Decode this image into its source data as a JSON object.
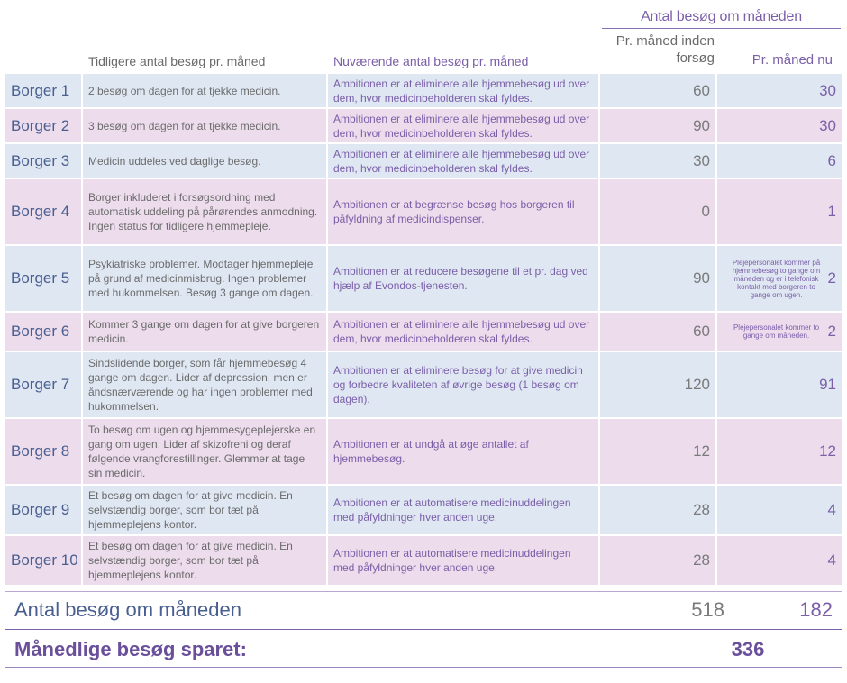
{
  "header": {
    "group_title": "Antal besøg om måneden",
    "col_previous": "Tidligere antal besøg pr. måned",
    "col_current": "Nuværende antal besøg pr. måned",
    "col_before": "Pr. måned inden forsøg",
    "col_now": "Pr. måned nu"
  },
  "rows": [
    {
      "name": "Borger 1",
      "previous": "2 besøg om dagen for at tjekke medicin.",
      "current": "Ambitionen er at eliminere alle hjemmebesøg ud over dem, hvor medicinbeholderen skal fyldes.",
      "before": "60",
      "now": "30",
      "note": ""
    },
    {
      "name": "Borger 2",
      "previous": "3 besøg om dagen for at tjekke medicin.",
      "current": "Ambitionen er at eliminere alle hjemmebesøg ud over dem, hvor medicinbeholderen skal fyldes.",
      "before": "90",
      "now": "30",
      "note": ""
    },
    {
      "name": "Borger 3",
      "previous": "Medicin uddeles ved daglige besøg.",
      "current": "Ambitionen er at eliminere alle hjemmebesøg ud over dem, hvor medicinbeholderen skal fyldes.",
      "before": "30",
      "now": "6",
      "note": ""
    },
    {
      "name": "Borger 4",
      "previous": "Borger inkluderet i forsøgsordning med automatisk uddeling på pårørendes anmodning. Ingen status for tidligere hjemmepleje.",
      "current": "Ambitionen er at begrænse besøg hos borgeren til påfyldning af medicindispenser.",
      "before": "0",
      "now": "1",
      "note": ""
    },
    {
      "name": "Borger 5",
      "previous": "Psykiatriske problemer. Modtager hjemmepleje på grund af medicinmisbrug. Ingen problemer med hukommelsen. Besøg 3 gange om dagen.",
      "current": "Ambitionen er at reducere besøgene til et pr. dag ved hjælp af Evondos-tjenesten.",
      "before": "90",
      "now": "2",
      "note": "Plejepersonalet kommer på hjemmebesøg to gange om måneden og er i telefonisk kontakt med borgeren to gange om ugen."
    },
    {
      "name": "Borger 6",
      "previous": "Kommer 3 gange om dagen for at give borgeren medicin.",
      "current": "Ambitionen er at eliminere alle hjemmebesøg ud over dem, hvor medicinbeholderen skal fyldes.",
      "before": "60",
      "now": "2",
      "note": "Plejepersonalet kommer to gange om måneden."
    },
    {
      "name": "Borger 7",
      "previous": "Sindslidende borger, som får hjemmebesøg 4 gange om dagen. Lider af depression, men er åndsnærværende og har ingen problemer med hukommelsen.",
      "current": "Ambitionen er at eliminere besøg for at give medicin og forbedre kvaliteten af øvrige besøg (1 besøg om dagen).",
      "before": "120",
      "now": "91",
      "note": ""
    },
    {
      "name": "Borger 8",
      "previous": "To besøg om ugen og hjemmesygeplejerske en gang om ugen. Lider af skizofreni og deraf følgende vrangforestillinger. Glemmer at tage sin medicin.",
      "current": "Ambitionen er at undgå at øge antallet af hjemmebesøg.",
      "before": "12",
      "now": "12",
      "note": ""
    },
    {
      "name": "Borger 9",
      "previous": "Et besøg om dagen for at give medicin. En selvstændig borger, som bor tæt på hjemmeplejens kontor.",
      "current": "Ambitionen er at automatisere medicinuddelingen med påfyldninger hver anden uge.",
      "before": "28",
      "now": "4",
      "note": ""
    },
    {
      "name": "Borger 10",
      "previous": "Et besøg om dagen for at give medicin. En selvstændig borger, som bor tæt på hjemmeplejens kontor.",
      "current": "Ambitionen er at automatisere medicinuddelingen med påfyldninger hver anden uge.",
      "before": "28",
      "now": "4",
      "note": ""
    }
  ],
  "totals": {
    "label": "Antal besøg om måneden",
    "before": "518",
    "now": "182"
  },
  "saved": {
    "label": "Månedlige besøg sparet:",
    "value": "336"
  },
  "colors": {
    "blue_row": "#dfe7f3",
    "pink_row": "#ecdcec",
    "purple": "#7b5fa8",
    "navy": "#4a5f91"
  }
}
